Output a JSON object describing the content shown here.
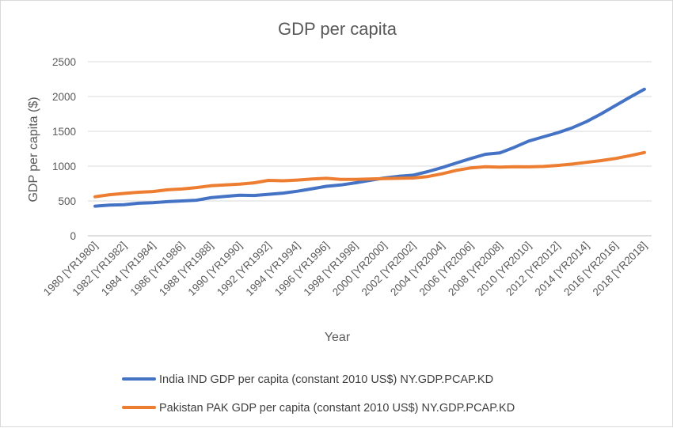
{
  "chart_data": {
    "type": "line",
    "title": "GDP per capita",
    "xlabel": "Year",
    "ylabel": "GDP per capita ($)",
    "ylim": [
      0,
      2500
    ],
    "yticks": [
      0,
      500,
      1000,
      1500,
      2000,
      2500
    ],
    "grid": true,
    "legend": "bottom",
    "categories": [
      "1980 [YR1980]",
      "1981 [YR1981]",
      "1982 [YR1982]",
      "1983 [YR1983]",
      "1984 [YR1984]",
      "1985 [YR1985]",
      "1986 [YR1986]",
      "1987 [YR1987]",
      "1988 [YR1988]",
      "1989 [YR1989]",
      "1990 [YR1990]",
      "1991 [YR1991]",
      "1992 [YR1992]",
      "1993 [YR1993]",
      "1994 [YR1994]",
      "1995 [YR1995]",
      "1996 [YR1996]",
      "1997 [YR1997]",
      "1998 [YR1998]",
      "1999 [YR1999]",
      "2000 [YR2000]",
      "2001 [YR2001]",
      "2002 [YR2002]",
      "2003 [YR2003]",
      "2004 [YR2004]",
      "2005 [YR2005]",
      "2006 [YR2006]",
      "2007 [YR2007]",
      "2008 [YR2008]",
      "2009 [YR2009]",
      "2010 [YR2010]",
      "2011 [YR2011]",
      "2012 [YR2012]",
      "2013 [YR2013]",
      "2014 [YR2014]",
      "2015 [YR2015]",
      "2016 [YR2016]",
      "2017 [YR2017]",
      "2018 [YR2018]"
    ],
    "tick_labels": [
      "1980 [YR1980]",
      "1982 [YR1982]",
      "1984 [YR1984]",
      "1986 [YR1986]",
      "1988 [YR1988]",
      "1990 [YR1990]",
      "1992 [YR1992]",
      "1994 [YR1994]",
      "1996 [YR1996]",
      "1998 [YR1998]",
      "2000 [YR2000]",
      "2002 [YR2002]",
      "2004 [YR2004]",
      "2006 [YR2006]",
      "2008 [YR2008]",
      "2010 [YR2010]",
      "2012 [YR2012]",
      "2014 [YR2014]",
      "2016 [YR2016]",
      "2018 [YR2018]"
    ],
    "series": [
      {
        "name": "India IND GDP per capita (constant 2010 US$) NY.GDP.PCAP.KD",
        "color": "#4472c4",
        "values": [
          425,
          440,
          445,
          467,
          475,
          490,
          500,
          510,
          547,
          565,
          583,
          578,
          595,
          612,
          640,
          675,
          710,
          730,
          760,
          795,
          830,
          855,
          870,
          920,
          980,
          1045,
          1110,
          1170,
          1190,
          1270,
          1360,
          1420,
          1480,
          1550,
          1640,
          1750,
          1870,
          1990,
          2105
        ]
      },
      {
        "name": "Pakistan PAK GDP per capita (constant 2010 US$) NY.GDP.PCAP.KD",
        "color": "#ed7d31",
        "values": [
          560,
          590,
          608,
          625,
          635,
          660,
          672,
          692,
          718,
          730,
          742,
          760,
          795,
          790,
          800,
          815,
          825,
          810,
          810,
          815,
          820,
          825,
          830,
          850,
          890,
          940,
          975,
          992,
          985,
          992,
          990,
          995,
          1010,
          1030,
          1055,
          1080,
          1110,
          1150,
          1195
        ]
      }
    ]
  }
}
